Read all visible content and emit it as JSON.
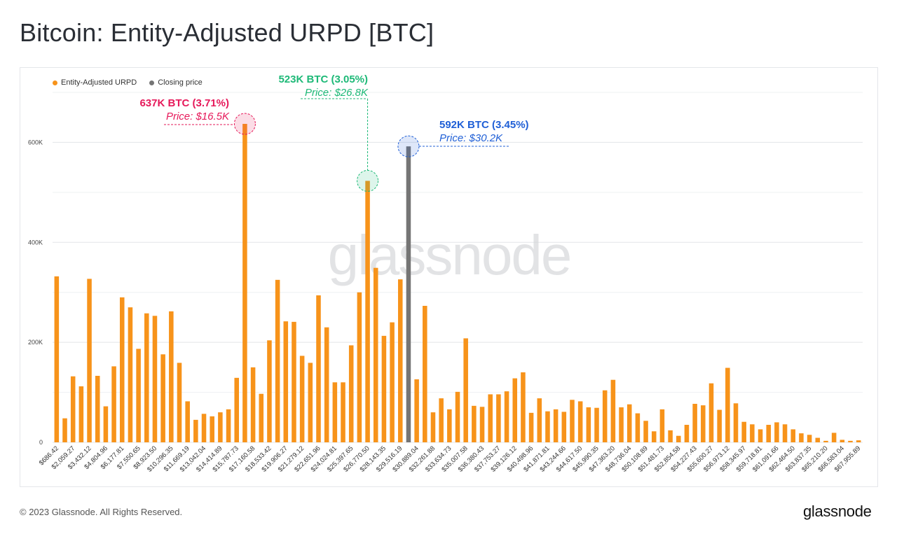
{
  "title": "Bitcoin: Entity-Adjusted URPD [BTC]",
  "legend": [
    {
      "label": "Entity-Adjusted URPD",
      "color": "#f7931a"
    },
    {
      "label": "Closing price",
      "color": "#757575"
    }
  ],
  "watermark": "glassnode",
  "footer": {
    "copyright": "© 2023 Glassnode. All Rights Reserved.",
    "brand": "glassnode"
  },
  "annotations": [
    {
      "line1": "637K BTC (3.71%)",
      "line2": "Price: $16.5K",
      "color": "#e6195a",
      "bar_index": 23
    },
    {
      "line1": "523K BTC (3.05%)",
      "line2": "Price: $26.8K",
      "color": "#1db977",
      "bar_index": 38
    },
    {
      "line1": "592K BTC (3.45%)",
      "line2": "Price: $30.2K",
      "color": "#1f5fd6",
      "bar_index": 43
    }
  ],
  "chart_data": {
    "type": "bar",
    "ylim": [
      0,
      700000
    ],
    "yticks": [
      {
        "value": 0,
        "label": "0"
      },
      {
        "value": 200000,
        "label": "200K"
      },
      {
        "value": 400000,
        "label": "400K"
      },
      {
        "value": 600000,
        "label": "600K"
      }
    ],
    "bar_color": "#f7931a",
    "highlight_color": "#757575",
    "highlight_index": 43,
    "tick_labels": [
      "$686.42",
      "$2,059.27",
      "$3,432.12",
      "$4,804.96",
      "$6,177.81",
      "$7,550.65",
      "$8,923.50",
      "$10,296.35",
      "$11,669.19",
      "$13,042.04",
      "$14,414.89",
      "$15,787.73",
      "$17,160.58",
      "$18,533.42",
      "$19,906.27",
      "$21,279.12",
      "$22,651.96",
      "$24,024.81",
      "$25,397.65",
      "$26,770.50",
      "$28,143.35",
      "$29,516.19",
      "$30,889.04",
      "$32,261.88",
      "$33,634.73",
      "$35,007.58",
      "$36,380.43",
      "$37,753.27",
      "$39,126.12",
      "$40,498.96",
      "$41,871.81",
      "$43,244.66",
      "$44,617.50",
      "$45,990.35",
      "$47,363.20",
      "$48,736.04",
      "$50,108.89",
      "$51,481.73",
      "$52,854.58",
      "$54,227.43",
      "$55,600.27",
      "$56,973.12",
      "$58,345.97",
      "$59,718.81",
      "$61,091.66",
      "$62,464.50",
      "$63,837.35",
      "$65,210.20",
      "$66,583.04",
      "$67,955.89"
    ],
    "values": [
      332000,
      48000,
      132000,
      112000,
      327000,
      133000,
      72000,
      152000,
      290000,
      270000,
      187000,
      258000,
      253000,
      176000,
      262000,
      159000,
      82000,
      45000,
      57000,
      52000,
      60000,
      66000,
      129000,
      637000,
      150000,
      97000,
      204000,
      325000,
      242000,
      241000,
      173000,
      159000,
      294000,
      230000,
      120000,
      120000,
      194000,
      300000,
      523000,
      349000,
      213000,
      240000,
      326000,
      592000,
      126000,
      273000,
      60000,
      88000,
      66000,
      101000,
      208000,
      73000,
      71000,
      96000,
      96000,
      102000,
      128000,
      140000,
      59000,
      88000,
      62000,
      66000,
      61000,
      85000,
      82000,
      70000,
      69000,
      104000,
      125000,
      70000,
      76000,
      58000,
      43000,
      22000,
      66000,
      24000,
      13000,
      35000,
      77000,
      74000,
      118000,
      65000,
      149000,
      78000,
      41000,
      36000,
      26000,
      35000,
      40000,
      36000,
      26000,
      18000,
      15000,
      9000,
      3000,
      19000,
      5000,
      3000,
      4000
    ]
  }
}
